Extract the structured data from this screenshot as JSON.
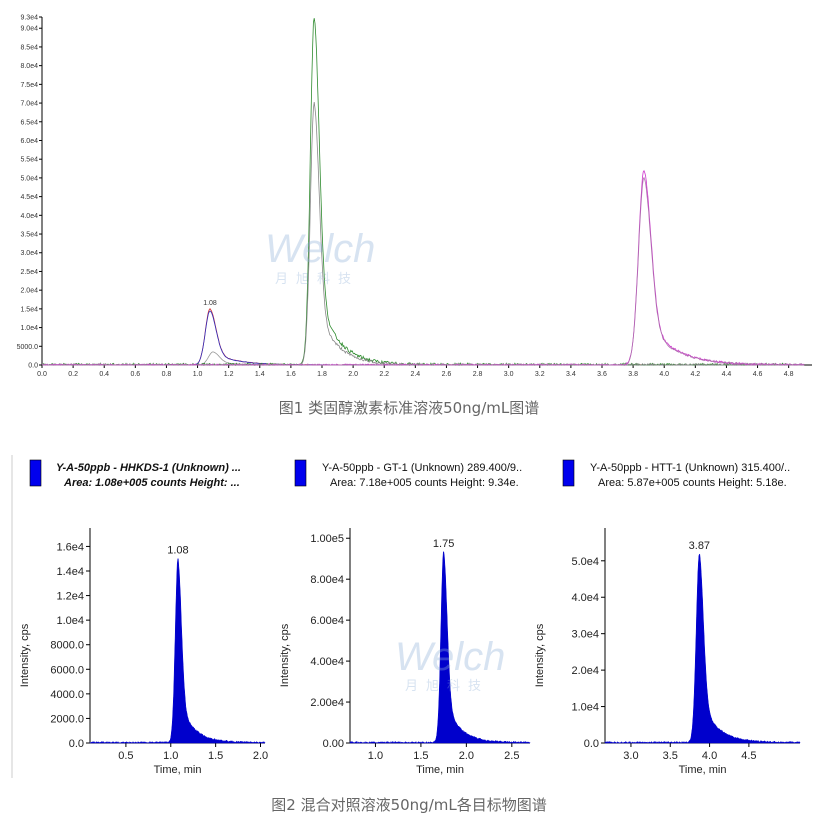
{
  "captions": {
    "fig1": "图1 类固醇激素标准溶液50ng/mL图谱",
    "fig2": "图2 混合对照溶液50ng/mL各目标物图谱"
  },
  "watermark": {
    "brand": "Welch",
    "sub": "月旭科技"
  },
  "chart_data": [
    {
      "type": "line",
      "xlim": [
        0,
        4.95
      ],
      "ylim": [
        0,
        93000
      ],
      "xticks": [
        "0.0",
        "0.2",
        "0.4",
        "0.6",
        "0.8",
        "1.0",
        "1.2",
        "1.4",
        "1.6",
        "1.8",
        "2.0",
        "2.2",
        "2.4",
        "2.6",
        "2.8",
        "3.0",
        "3.2",
        "3.4",
        "3.6",
        "3.8",
        "4.0",
        "4.2",
        "4.4",
        "4.6",
        "4.8"
      ],
      "yticks": [
        "0.0",
        "5000.0",
        "1.0e4",
        "1.5e4",
        "2.0e4",
        "2.5e4",
        "3.0e4",
        "3.5e4",
        "4.0e4",
        "4.5e4",
        "5.0e4",
        "5.5e4",
        "6.0e4",
        "6.5e4",
        "7.0e4",
        "7.5e4",
        "8.0e4",
        "8.5e4",
        "9.0e4",
        "9.3e4"
      ],
      "annotations": [
        {
          "text": "1.08",
          "x": 1.08,
          "y": 15000
        }
      ],
      "series": [
        {
          "color": "#d03030",
          "peak_rt": 1.08,
          "height": 15000
        },
        {
          "color": "#3030c0",
          "peak_rt": 1.08,
          "height": 14500
        },
        {
          "color": "#999999",
          "peak_rt": 1.1,
          "height": 3500
        },
        {
          "color": "#2e8b2e",
          "peak_rt": 1.75,
          "height": 93000
        },
        {
          "color": "#888888",
          "peak_rt": 1.75,
          "height": 70000
        },
        {
          "color": "#cc33cc",
          "peak_rt": 3.87,
          "height": 52000
        },
        {
          "color": "#b070b0",
          "peak_rt": 3.87,
          "height": 50000
        }
      ]
    },
    {
      "type": "area",
      "legend": {
        "line1": "Y-A-50ppb - HHKDS-1 (Unknown) ...",
        "line2": "Area: 1.08e+005 counts  Height: ..."
      },
      "xlabel": "Time, min",
      "ylabel": "Intensity, cps",
      "xlim": [
        0.1,
        2.05
      ],
      "ylim": [
        0,
        17500
      ],
      "xticks": [
        0.5,
        1.0,
        1.5,
        2.0
      ],
      "xtick_labels": [
        "0.5",
        "1.0",
        "1.5",
        "2.0"
      ],
      "yticks": [
        0,
        2000,
        4000,
        6000,
        8000,
        10000,
        12000,
        14000,
        16000
      ],
      "ytick_labels": [
        "0.0",
        "2000.0",
        "4000.0",
        "6000.0",
        "8000.0",
        "1.0e4",
        "1.2e4",
        "1.4e4",
        "1.6e4"
      ],
      "peak_label": "1.08",
      "peak_rt": 1.08,
      "height": 15000,
      "color": "#0000cc"
    },
    {
      "type": "area",
      "legend": {
        "line1": "Y-A-50ppb - GT-1 (Unknown) 289.400/9..",
        "line2": "Area: 7.18e+005 counts  Height: 9.34e."
      },
      "xlabel": "Time, min",
      "ylabel": "Intensity, cps",
      "xlim": [
        0.72,
        2.7
      ],
      "ylim": [
        0,
        105000
      ],
      "xticks": [
        1.0,
        1.5,
        2.0,
        2.5
      ],
      "xtick_labels": [
        "1.0",
        "1.5",
        "2.0",
        "2.5"
      ],
      "yticks": [
        0,
        20000,
        40000,
        60000,
        80000,
        100000
      ],
      "ytick_labels": [
        "0.00",
        "2.00e4",
        "4.00e4",
        "6.00e4",
        "8.00e4",
        "1.00e5"
      ],
      "peak_label": "1.75",
      "peak_rt": 1.75,
      "height": 93400,
      "color": "#0000cc"
    },
    {
      "type": "area",
      "legend": {
        "line1": "Y-A-50ppb - HTT-1 (Unknown) 315.400/..",
        "line2": "Area: 5.87e+005 counts  Height: 5.18e."
      },
      "xlabel": "Time, min",
      "ylabel": "Intensity, cps",
      "xlim": [
        2.67,
        5.15
      ],
      "ylim": [
        0,
        59000
      ],
      "xticks": [
        3.0,
        3.5,
        4.0,
        4.5
      ],
      "xtick_labels": [
        "3.0",
        "3.5",
        "4.0",
        "4.5"
      ],
      "yticks": [
        0,
        10000,
        20000,
        30000,
        40000,
        50000
      ],
      "ytick_labels": [
        "0.0",
        "1.0e4",
        "2.0e4",
        "3.0e4",
        "4.0e4",
        "5.0e4"
      ],
      "peak_label": "3.87",
      "peak_rt": 3.87,
      "height": 51800,
      "color": "#0000cc"
    }
  ]
}
